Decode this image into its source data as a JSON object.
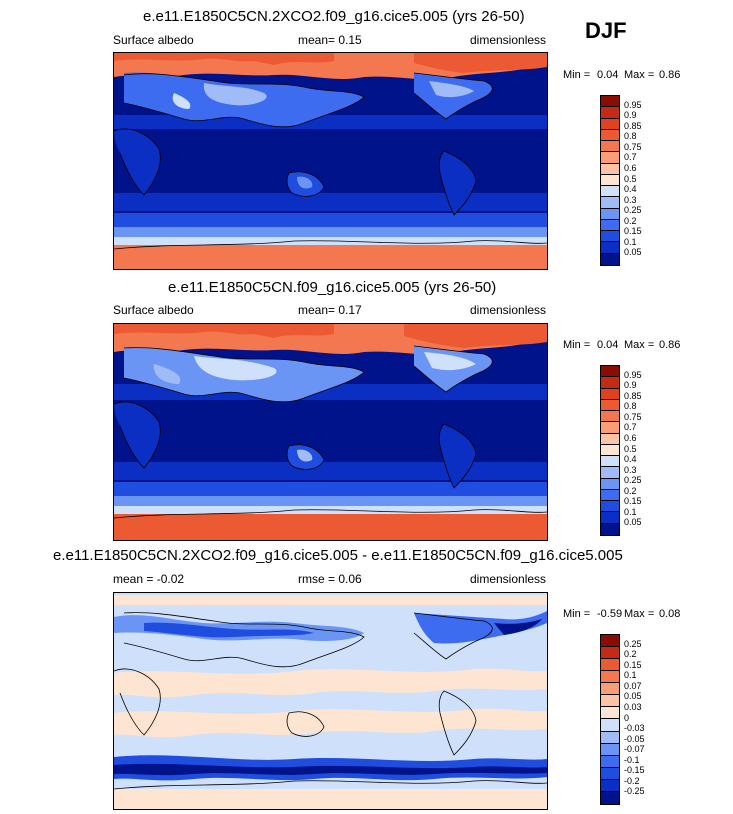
{
  "season": "DJF",
  "palette_albedo": [
    "#00138a",
    "#0a2fc2",
    "#1f4de0",
    "#3d6cf0",
    "#6b95f5",
    "#a0bcf8",
    "#cfe0fb",
    "#fde5d2",
    "#fcc3a4",
    "#f99d77",
    "#f37850",
    "#ec5a33",
    "#e0421f",
    "#c52a14",
    "#8a0d05"
  ],
  "palette_diff": [
    "#00138a",
    "#0a2fc2",
    "#1f4de0",
    "#3d6cf0",
    "#6b95f5",
    "#a0bcf8",
    "#cfe0fb",
    "#fde5d2",
    "#fcc3a4",
    "#f99d77",
    "#f37850",
    "#ec5a33",
    "#c52a14",
    "#8a0d05"
  ],
  "panels": [
    {
      "title": "e.e11.E1850C5CN.2XCO2.f09_g16.cice5.005 (yrs 26-50)",
      "left_label": "Surface albedo",
      "mid_label": "mean=  0.15",
      "right_label": "dimensionless",
      "min_label": "Min =",
      "min_value": "0.04",
      "max_label": "Max =",
      "max_value": "0.86",
      "colorbar_labels": [
        "0.95",
        "0.9",
        "0.85",
        "0.8",
        "0.75",
        "0.7",
        "0.6",
        "0.5",
        "0.4",
        "0.3",
        "0.25",
        "0.2",
        "0.15",
        "0.1",
        "0.05"
      ]
    },
    {
      "title": "e.e11.E1850C5CN.f09_g16.cice5.005 (yrs 26-50)",
      "left_label": "Surface albedo",
      "mid_label": "mean=  0.17",
      "right_label": "dimensionless",
      "min_label": "Min =",
      "min_value": "0.04",
      "max_label": "Max =",
      "max_value": "0.86",
      "colorbar_labels": [
        "0.95",
        "0.9",
        "0.85",
        "0.8",
        "0.75",
        "0.7",
        "0.6",
        "0.5",
        "0.4",
        "0.3",
        "0.25",
        "0.2",
        "0.15",
        "0.1",
        "0.05"
      ]
    },
    {
      "title": "e.e11.E1850C5CN.2XCO2.f09_g16.cice5.005 - e.e11.E1850C5CN.f09_g16.cice5.005",
      "left_label": "mean = -0.02",
      "mid_label": "rmse =  0.06",
      "right_label": "dimensionless",
      "min_label": "Min =",
      "min_value": "-0.59",
      "max_label": "Max =",
      "max_value": "0.08",
      "colorbar_labels": [
        "0.25",
        "0.2",
        "0.15",
        "0.1",
        "0.07",
        "0.05",
        "0.03",
        "0",
        "-0.03",
        "-0.05",
        "-0.07",
        "-0.1",
        "-0.15",
        "-0.2",
        "-0.25"
      ]
    }
  ]
}
